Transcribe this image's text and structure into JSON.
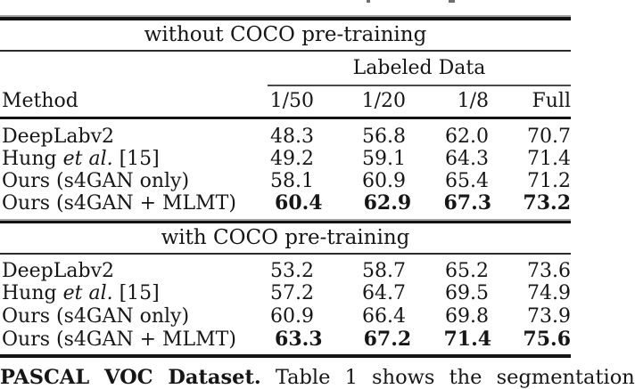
{
  "table": {
    "header": {
      "method_label": "Method",
      "group_label": "Labeled Data",
      "columns": [
        "1/50",
        "1/20",
        "1/8",
        "Full"
      ]
    },
    "sections": [
      {
        "title": "without COCO pre-training",
        "rows": [
          {
            "method_prefix": "DeepLabv2",
            "method_italic": "",
            "method_suffix": "",
            "values": [
              "48.3",
              "56.8",
              "62.0",
              "70.7"
            ]
          },
          {
            "method_prefix": "Hung ",
            "method_italic": "et al.",
            "method_suffix": " [15]",
            "values": [
              "49.2",
              "59.1",
              "64.3",
              "71.4"
            ]
          },
          {
            "method_prefix": "Ours (s4GAN only)",
            "method_italic": "",
            "method_suffix": "",
            "values": [
              "58.1",
              "60.9",
              "65.4",
              "71.2"
            ]
          },
          {
            "method_prefix": "Ours (s4GAN + MLMT)",
            "method_italic": "",
            "method_suffix": "",
            "values": [
              "60.4",
              "62.9",
              "67.3",
              "73.2"
            ]
          }
        ]
      },
      {
        "title": "with COCO pre-training",
        "rows": [
          {
            "method_prefix": "DeepLabv2",
            "method_italic": "",
            "method_suffix": "",
            "values": [
              "53.2",
              "58.7",
              "65.2",
              "73.6"
            ]
          },
          {
            "method_prefix": "Hung ",
            "method_italic": "et al.",
            "method_suffix": " [15]",
            "values": [
              "57.2",
              "64.7",
              "69.5",
              "74.9"
            ]
          },
          {
            "method_prefix": "Ours (s4GAN only)",
            "method_italic": "",
            "method_suffix": "",
            "values": [
              "60.9",
              "66.4",
              "69.8",
              "73.9"
            ]
          },
          {
            "method_prefix": "Ours (s4GAN + MLMT)",
            "method_italic": "",
            "method_suffix": "",
            "values": [
              "63.3",
              "67.2",
              "71.4",
              "75.6"
            ]
          }
        ]
      }
    ]
  },
  "footer": {
    "lead_bold": "PASCAL VOC Dataset.",
    "rest": "Table 1 shows the segmentation"
  },
  "colors": {
    "text": "#161616",
    "rule": "#131313",
    "background": "#ffffff"
  }
}
